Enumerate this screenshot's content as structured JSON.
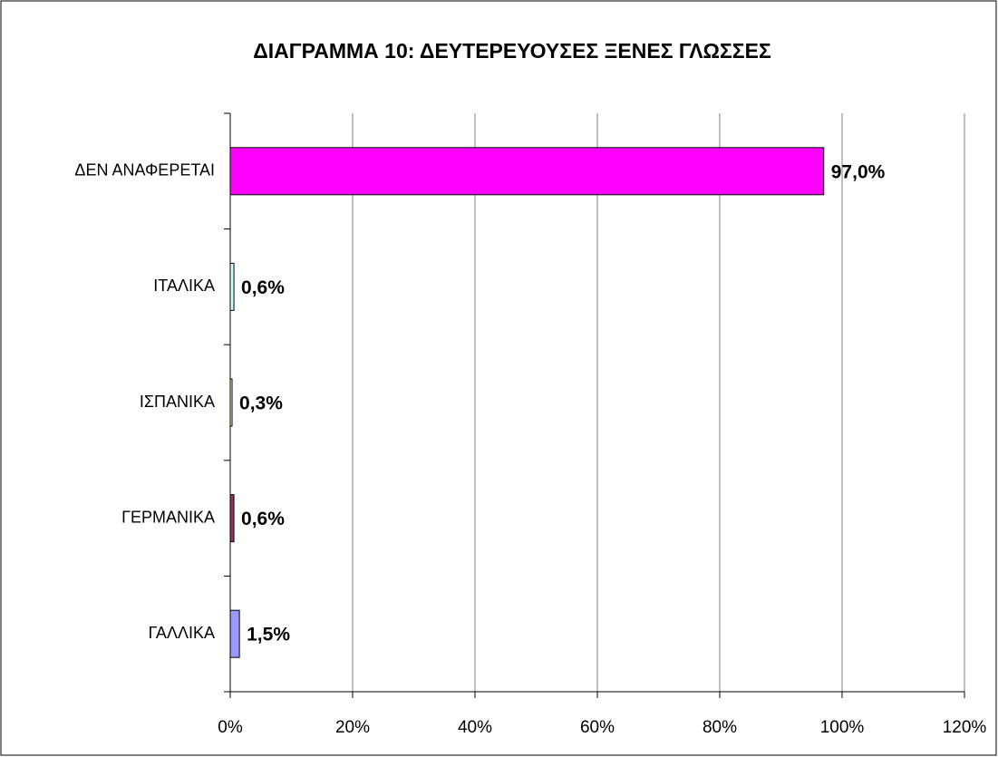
{
  "chart_data": {
    "type": "bar",
    "orientation": "horizontal",
    "title": "ΔΙΑΓΡΑΜΜΑ 10: ΔΕΥΤΕΡΕΥΟΥΣΕΣ ΞΕΝΕΣ ΓΛΩΣΣΕΣ",
    "categories": [
      "ΔΕΝ ΑΝΑΦΕΡΕΤΑΙ",
      "ΙΤΑΛΙΚΑ",
      "ΙΣΠΑΝΙΚΑ",
      "ΓΕΡΜΑΝΙΚΑ",
      "ΓΑΛΛΙΚΑ"
    ],
    "values": [
      97.0,
      0.6,
      0.3,
      0.6,
      1.5
    ],
    "value_labels": [
      "97,0%",
      "0,6%",
      "0,3%",
      "0,6%",
      "1,5%"
    ],
    "colors": [
      "#ff00ff",
      "#ccffff",
      "#ffffcc",
      "#993366",
      "#9999ff"
    ],
    "xlim": [
      0,
      120
    ],
    "xticks": [
      {
        "value": 0,
        "label": "0%"
      },
      {
        "value": 20,
        "label": "20%"
      },
      {
        "value": 40,
        "label": "40%"
      },
      {
        "value": 60,
        "label": "60%"
      },
      {
        "value": 80,
        "label": "80%"
      },
      {
        "value": 100,
        "label": "100%"
      },
      {
        "value": 120,
        "label": "120%"
      }
    ],
    "grid": true
  }
}
